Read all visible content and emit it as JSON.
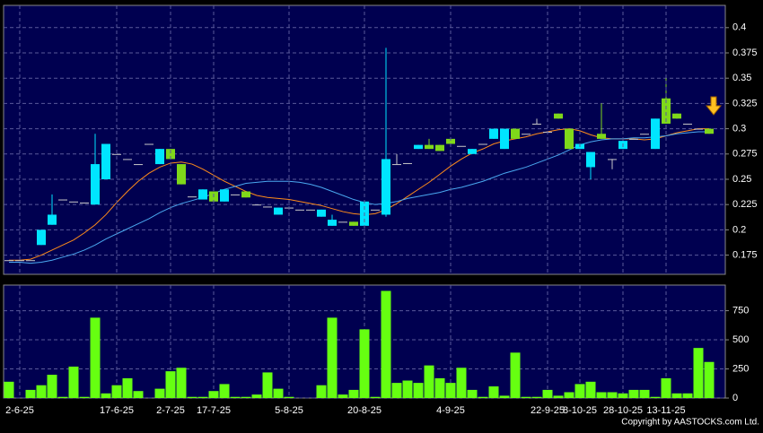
{
  "chart_data": [
    {
      "type": "candlestick",
      "open": [
        0.17,
        0.17,
        0.17,
        0.185,
        0.205,
        0.23,
        0.228,
        0.227,
        0.225,
        0.25,
        0.275,
        0.27,
        0.265,
        0.285,
        0.265,
        0.28,
        0.265,
        0.233,
        0.23,
        0.238,
        0.228,
        0.235,
        0.238,
        0.225,
        0.223,
        0.215,
        0.222,
        0.22,
        0.22,
        0.213,
        0.204,
        0.208,
        0.208,
        0.204,
        0.22,
        0.215,
        0.265,
        0.266,
        0.28,
        0.284,
        0.284,
        0.29,
        0.283,
        0.275,
        0.285,
        0.29,
        0.28,
        0.3,
        0.295,
        0.305,
        0.297,
        0.315,
        0.3,
        0.28,
        0.262,
        0.295,
        0.27,
        0.28,
        0.29,
        0.295,
        0.28,
        0.33,
        0.315,
        0.305,
        0.3,
        0.3
      ],
      "high": [
        0.17,
        0.17,
        0.17,
        0.2,
        0.235,
        0.23,
        0.228,
        0.227,
        0.295,
        0.285,
        0.275,
        0.27,
        0.265,
        0.285,
        0.28,
        0.28,
        0.265,
        0.233,
        0.24,
        0.238,
        0.24,
        0.235,
        0.238,
        0.225,
        0.223,
        0.222,
        0.222,
        0.22,
        0.22,
        0.22,
        0.215,
        0.208,
        0.208,
        0.228,
        0.22,
        0.38,
        0.275,
        0.266,
        0.284,
        0.29,
        0.284,
        0.29,
        0.283,
        0.28,
        0.285,
        0.3,
        0.3,
        0.3,
        0.295,
        0.31,
        0.297,
        0.315,
        0.3,
        0.285,
        0.277,
        0.325,
        0.27,
        0.288,
        0.29,
        0.295,
        0.31,
        0.35,
        0.315,
        0.305,
        0.3,
        0.3
      ],
      "low": [
        0.17,
        0.17,
        0.17,
        0.185,
        0.205,
        0.23,
        0.228,
        0.227,
        0.225,
        0.25,
        0.275,
        0.27,
        0.265,
        0.285,
        0.265,
        0.27,
        0.245,
        0.233,
        0.23,
        0.228,
        0.228,
        0.235,
        0.232,
        0.225,
        0.223,
        0.215,
        0.222,
        0.22,
        0.22,
        0.213,
        0.204,
        0.208,
        0.204,
        0.204,
        0.22,
        0.213,
        0.265,
        0.266,
        0.28,
        0.28,
        0.278,
        0.285,
        0.283,
        0.275,
        0.285,
        0.29,
        0.28,
        0.29,
        0.295,
        0.305,
        0.297,
        0.31,
        0.28,
        0.28,
        0.25,
        0.29,
        0.26,
        0.28,
        0.29,
        0.295,
        0.28,
        0.305,
        0.31,
        0.305,
        0.3,
        0.295
      ],
      "close": [
        0.17,
        0.17,
        0.17,
        0.2,
        0.215,
        0.23,
        0.228,
        0.227,
        0.265,
        0.285,
        0.275,
        0.27,
        0.265,
        0.285,
        0.28,
        0.27,
        0.245,
        0.233,
        0.24,
        0.228,
        0.24,
        0.235,
        0.232,
        0.225,
        0.223,
        0.222,
        0.222,
        0.22,
        0.22,
        0.22,
        0.21,
        0.208,
        0.204,
        0.228,
        0.22,
        0.27,
        0.265,
        0.266,
        0.284,
        0.28,
        0.278,
        0.285,
        0.283,
        0.28,
        0.285,
        0.3,
        0.3,
        0.29,
        0.295,
        0.305,
        0.297,
        0.31,
        0.28,
        0.285,
        0.277,
        0.29,
        0.27,
        0.288,
        0.29,
        0.295,
        0.31,
        0.305,
        0.31,
        0.305,
        0.3,
        0.295
      ],
      "up_color": "#00e5ff",
      "down_color": "#7fd81a",
      "flat_color": "#c8c8c8",
      "series": [
        {
          "color": "#ff8c1a",
          "values": [
            0.17,
            0.17,
            0.171,
            0.175,
            0.18,
            0.185,
            0.19,
            0.197,
            0.205,
            0.215,
            0.227,
            0.238,
            0.248,
            0.256,
            0.262,
            0.266,
            0.267,
            0.265,
            0.26,
            0.254,
            0.248,
            0.243,
            0.238,
            0.234,
            0.232,
            0.231,
            0.23,
            0.228,
            0.226,
            0.224,
            0.221,
            0.218,
            0.216,
            0.215,
            0.216,
            0.22,
            0.226,
            0.233,
            0.24,
            0.247,
            0.255,
            0.263,
            0.27,
            0.276,
            0.28,
            0.285,
            0.288,
            0.29,
            0.292,
            0.295,
            0.297,
            0.299,
            0.3,
            0.298,
            0.294,
            0.291,
            0.29,
            0.29,
            0.29,
            0.289,
            0.29,
            0.293,
            0.296,
            0.298,
            0.3,
            0.3
          ]
        },
        {
          "color": "#4aa8f0",
          "values": [
            0.168,
            0.168,
            0.167,
            0.168,
            0.17,
            0.173,
            0.176,
            0.18,
            0.185,
            0.191,
            0.196,
            0.201,
            0.206,
            0.211,
            0.217,
            0.222,
            0.226,
            0.229,
            0.232,
            0.236,
            0.24,
            0.243,
            0.246,
            0.247,
            0.248,
            0.248,
            0.248,
            0.247,
            0.245,
            0.242,
            0.238,
            0.234,
            0.23,
            0.227,
            0.225,
            0.226,
            0.228,
            0.231,
            0.233,
            0.235,
            0.237,
            0.24,
            0.242,
            0.245,
            0.248,
            0.252,
            0.256,
            0.259,
            0.262,
            0.266,
            0.27,
            0.274,
            0.279,
            0.284,
            0.287,
            0.289,
            0.29,
            0.29,
            0.291,
            0.291,
            0.292,
            0.293,
            0.295,
            0.296,
            0.297,
            0.297
          ]
        }
      ],
      "ylim": [
        0.156,
        0.422
      ],
      "yticks": [
        0.175,
        0.2,
        0.225,
        0.25,
        0.275,
        0.3,
        0.325,
        0.35,
        0.375,
        0.4
      ],
      "grid": true
    },
    {
      "type": "bar",
      "categories": [
        null,
        "2-6-25",
        null,
        null,
        null,
        null,
        null,
        null,
        null,
        null,
        "17-6-25",
        null,
        null,
        null,
        null,
        "2-7-25",
        null,
        null,
        null,
        "17-7-25",
        null,
        null,
        null,
        null,
        null,
        null,
        "5-8-25",
        null,
        null,
        null,
        null,
        null,
        null,
        "20-8-25",
        null,
        null,
        null,
        null,
        null,
        null,
        null,
        "4-9-25",
        null,
        null,
        null,
        null,
        null,
        null,
        null,
        null,
        "22-9-25",
        null,
        null,
        "8-10-25",
        null,
        null,
        null,
        "28-10-25",
        null,
        null,
        null,
        "13-11-25",
        null,
        null,
        null,
        null
      ],
      "values": [
        140,
        0,
        70,
        110,
        200,
        10,
        270,
        10,
        690,
        40,
        110,
        170,
        60,
        0,
        80,
        230,
        260,
        10,
        10,
        60,
        120,
        10,
        10,
        30,
        220,
        80,
        10,
        0,
        0,
        110,
        690,
        30,
        70,
        590,
        10,
        920,
        130,
        150,
        130,
        280,
        170,
        130,
        260,
        70,
        10,
        100,
        20,
        390,
        10,
        10,
        70,
        20,
        50,
        120,
        140,
        50,
        50,
        40,
        70,
        70,
        10,
        170,
        40,
        40,
        430,
        310
      ],
      "color": "#66ff11",
      "ylim": [
        0,
        970
      ],
      "yticks": [
        0,
        250,
        500,
        750
      ],
      "grid": true
    }
  ],
  "copyright": "Copyright by AASTOCKS.com Ltd."
}
